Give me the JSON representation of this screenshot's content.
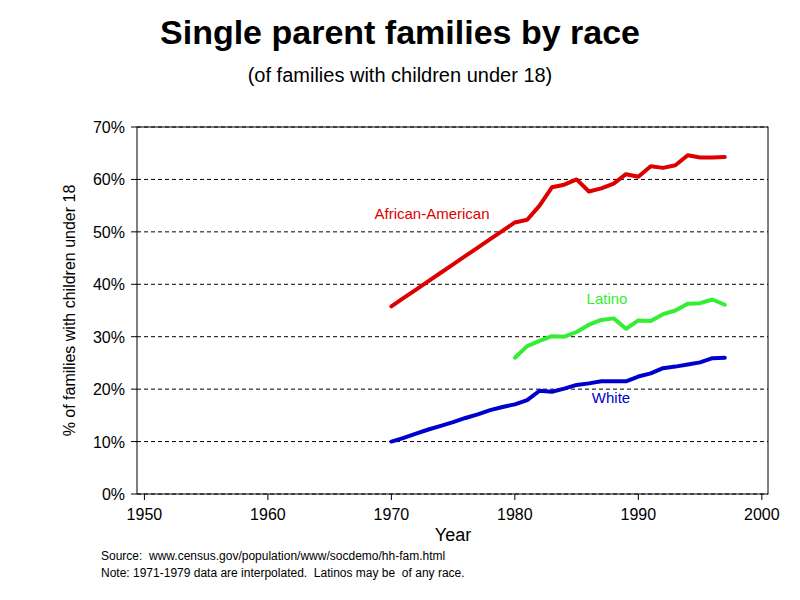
{
  "chart_data": {
    "type": "line",
    "title": "Single parent families by race",
    "subtitle": "(of families with children under 18)",
    "x_label": "Year",
    "y_label": "% of families with children under 18",
    "source": "Source:  www.census.gov/population/www/socdemo/hh-fam.html",
    "note": "Note: 1971-1979 data are interpolated.  Latinos may be  of any race.",
    "x": [
      1970,
      1971,
      1972,
      1973,
      1974,
      1975,
      1976,
      1977,
      1978,
      1979,
      1980,
      1981,
      1982,
      1983,
      1984,
      1985,
      1986,
      1987,
      1988,
      1989,
      1990,
      1991,
      1992,
      1993,
      1994,
      1995,
      1996,
      1997
    ],
    "series": [
      {
        "name": "African-American",
        "color": "#dd0000",
        "values": [
          35.8,
          37.4,
          39.0,
          40.6,
          42.2,
          43.8,
          45.4,
          47.0,
          48.6,
          50.2,
          51.8,
          52.3,
          55.0,
          58.5,
          59.0,
          60.0,
          57.7,
          58.3,
          59.2,
          61.0,
          60.5,
          62.5,
          62.2,
          62.7,
          64.6,
          64.2,
          64.2,
          64.3
        ]
      },
      {
        "name": "Latino",
        "color": "#33ee33",
        "values": [
          null,
          null,
          null,
          null,
          null,
          null,
          null,
          null,
          null,
          null,
          26.0,
          28.2,
          29.2,
          30.1,
          30.0,
          30.9,
          32.3,
          33.2,
          33.5,
          31.5,
          33.1,
          33.0,
          34.3,
          35.0,
          36.3,
          36.4,
          37.1,
          36.1
        ]
      },
      {
        "name": "White",
        "color": "#0000cc",
        "values": [
          10.0,
          10.7,
          11.5,
          12.3,
          13.0,
          13.7,
          14.5,
          15.2,
          16.0,
          16.6,
          17.1,
          17.9,
          19.7,
          19.5,
          20.1,
          20.8,
          21.1,
          21.5,
          21.5,
          21.5,
          22.4,
          23.0,
          24.0,
          24.3,
          24.7,
          25.1,
          25.9,
          26.0
        ]
      }
    ],
    "xlim": [
      1949.4,
      2000.5
    ],
    "xticks": [
      1950,
      1960,
      1970,
      1980,
      1990,
      2000
    ],
    "ylim": [
      0,
      70
    ],
    "yticks": [
      {
        "value": 0,
        "label": "0%"
      },
      {
        "value": 10,
        "label": "10%"
      },
      {
        "value": 20,
        "label": "20%"
      },
      {
        "value": 30,
        "label": "30%"
      },
      {
        "value": 40,
        "label": "40%"
      },
      {
        "value": 50,
        "label": "50%"
      },
      {
        "value": 60,
        "label": "60%"
      },
      {
        "value": 70,
        "label": "70%"
      }
    ],
    "grid": true
  }
}
